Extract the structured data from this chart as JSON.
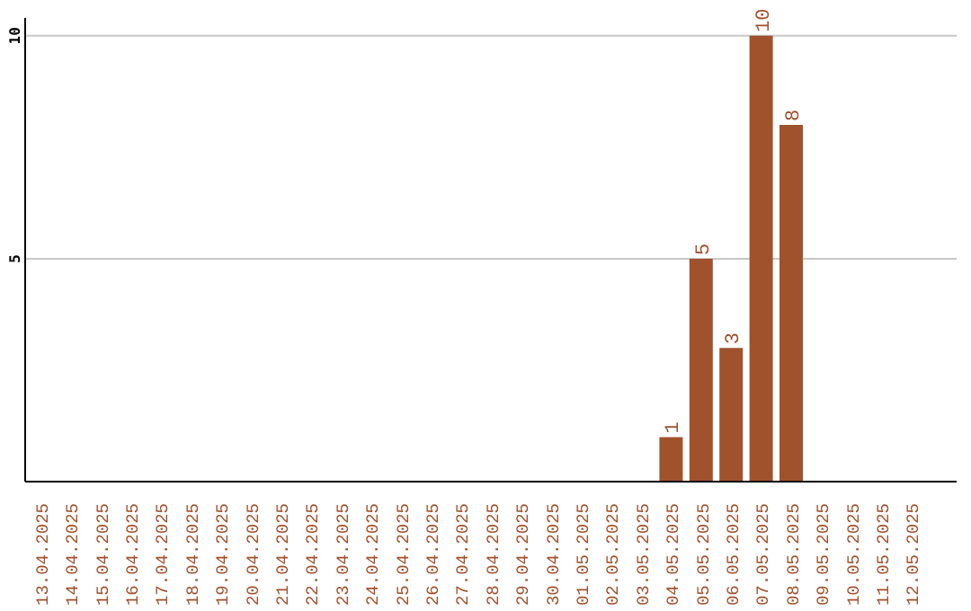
{
  "chart_data": {
    "type": "bar",
    "categories": [
      "13.04.2025",
      "14.04.2025",
      "15.04.2025",
      "16.04.2025",
      "17.04.2025",
      "18.04.2025",
      "19.04.2025",
      "20.04.2025",
      "21.04.2025",
      "22.04.2025",
      "23.04.2025",
      "24.04.2025",
      "25.04.2025",
      "26.04.2025",
      "27.04.2025",
      "28.04.2025",
      "29.04.2025",
      "30.04.2025",
      "01.05.2025",
      "02.05.2025",
      "03.05.2025",
      "04.05.2025",
      "05.05.2025",
      "06.05.2025",
      "07.05.2025",
      "08.05.2025",
      "09.05.2025",
      "10.05.2025",
      "11.05.2025",
      "12.05.2025"
    ],
    "values": [
      0,
      0,
      0,
      0,
      0,
      0,
      0,
      0,
      0,
      0,
      0,
      0,
      0,
      0,
      0,
      0,
      0,
      0,
      0,
      0,
      0,
      1,
      5,
      3,
      10,
      8,
      0,
      0,
      0,
      0
    ],
    "value_labels": [
      null,
      null,
      null,
      null,
      null,
      null,
      null,
      null,
      null,
      null,
      null,
      null,
      null,
      null,
      null,
      null,
      null,
      null,
      null,
      null,
      null,
      "1",
      "5",
      "3",
      "10",
      "8",
      null,
      null,
      null,
      null
    ],
    "color": "#a0522d",
    "ylim": [
      0,
      10.4
    ],
    "yticks": [
      5,
      10
    ],
    "grid": "y",
    "legend": false
  }
}
